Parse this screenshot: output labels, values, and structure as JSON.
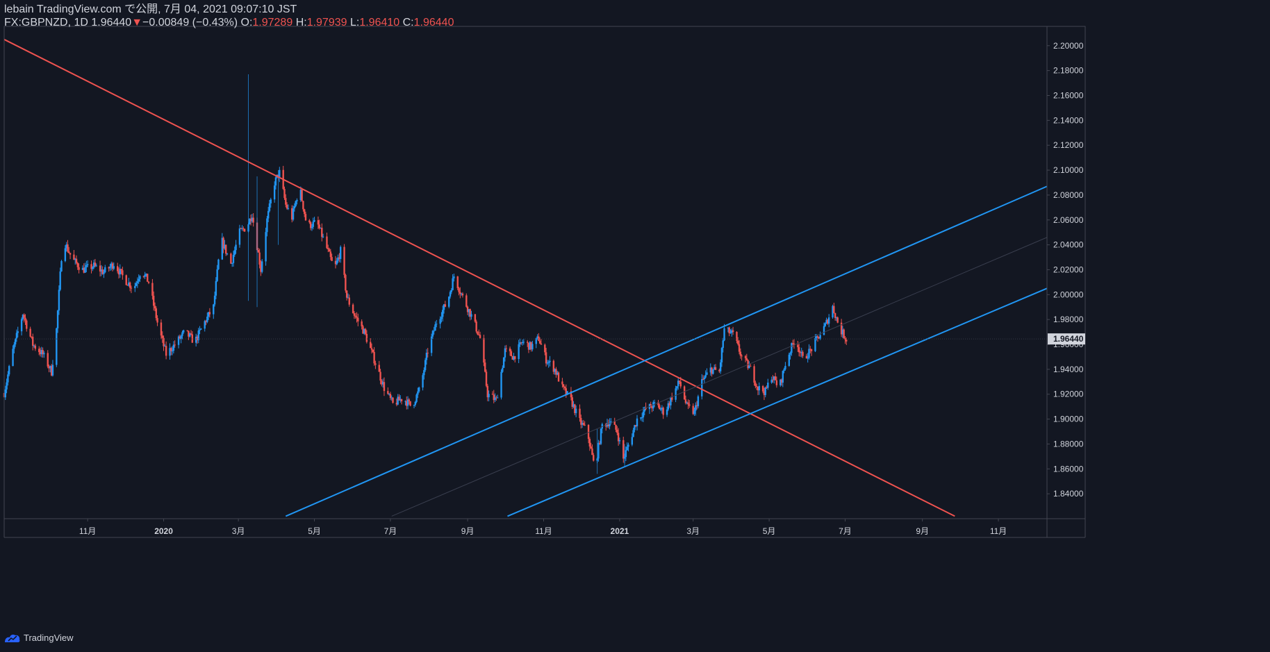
{
  "header": {
    "publish_line": "lebain TradingView.com で公開, 7月 04, 2021 09:07:10 JST",
    "symbol": "FX:GBPNZD, 1D",
    "last": "1.96440",
    "arrow": "▼",
    "change": "−0.00849 (−0.43%)",
    "o_label": "O:",
    "o_value": "1.97289",
    "h_label": "H:",
    "h_value": "1.97939",
    "l_label": "L:",
    "l_value": "1.96410",
    "c_label": "C:",
    "c_value": "1.96440"
  },
  "footer": {
    "brand": "TradingView"
  },
  "colors": {
    "background": "#131722",
    "up": "#2196f3",
    "down": "#ef5350",
    "price_badge_bg": "#d1d4dc",
    "price_badge_text": "#131722"
  },
  "chart_data": {
    "type": "candlestick",
    "x_ticks": [
      {
        "label": "11月",
        "date": "2019-11-01"
      },
      {
        "label": "2020",
        "date": "2020-01-01"
      },
      {
        "label": "3月",
        "date": "2020-03-01"
      },
      {
        "label": "5月",
        "date": "2020-05-01"
      },
      {
        "label": "7月",
        "date": "2020-07-01"
      },
      {
        "label": "9月",
        "date": "2020-09-01"
      },
      {
        "label": "11月",
        "date": "2020-11-01"
      },
      {
        "label": "2021",
        "date": "2021-01-01"
      },
      {
        "label": "3月",
        "date": "2021-03-01"
      },
      {
        "label": "5月",
        "date": "2021-05-01"
      },
      {
        "label": "7月",
        "date": "2021-07-01"
      },
      {
        "label": "9月",
        "date": "2021-09-01"
      },
      {
        "label": "11月",
        "date": "2021-11-01"
      }
    ],
    "y_ticks": [
      "2.20000",
      "2.18000",
      "2.16000",
      "2.14000",
      "2.12000",
      "2.10000",
      "2.08000",
      "2.06000",
      "2.04000",
      "2.02000",
      "2.00000",
      "1.98000",
      "1.96000",
      "1.94000",
      "1.92000",
      "1.90000",
      "1.88000",
      "1.86000",
      "1.84000"
    ],
    "ylim": [
      1.82,
      2.2155
    ],
    "xlim": [
      "2019-08-26",
      "2021-12-10"
    ],
    "last_price": "1.96440",
    "price_path": [
      [
        "2019-08-26",
        1.921
      ],
      [
        "2019-09-02",
        1.955
      ],
      [
        "2019-09-10",
        1.985
      ],
      [
        "2019-09-18",
        1.96
      ],
      [
        "2019-09-26",
        1.952
      ],
      [
        "2019-10-03",
        1.938
      ],
      [
        "2019-10-07",
        1.972
      ],
      [
        "2019-10-12",
        2.045
      ],
      [
        "2019-10-20",
        2.028
      ],
      [
        "2019-10-28",
        2.02
      ],
      [
        "2019-11-06",
        2.023
      ],
      [
        "2019-11-14",
        2.018
      ],
      [
        "2019-11-22",
        2.025
      ],
      [
        "2019-12-01",
        2.012
      ],
      [
        "2019-12-08",
        2.005
      ],
      [
        "2019-12-14",
        2.02
      ],
      [
        "2019-12-20",
        2.01
      ],
      [
        "2019-12-28",
        1.973
      ],
      [
        "2020-01-03",
        1.952
      ],
      [
        "2020-01-10",
        1.96
      ],
      [
        "2020-01-18",
        1.97
      ],
      [
        "2020-01-26",
        1.962
      ],
      [
        "2020-02-03",
        1.978
      ],
      [
        "2020-02-10",
        1.99
      ],
      [
        "2020-02-16",
        2.045
      ],
      [
        "2020-02-24",
        2.025
      ],
      [
        "2020-03-02",
        2.05
      ],
      [
        "2020-03-08",
        2.055
      ],
      [
        "2020-03-12",
        2.065
      ],
      [
        "2020-03-19",
        2.02
      ],
      [
        "2020-03-24",
        2.06
      ],
      [
        "2020-03-30",
        2.09
      ],
      [
        "2020-04-03",
        2.098
      ],
      [
        "2020-04-08",
        2.072
      ],
      [
        "2020-04-13",
        2.062
      ],
      [
        "2020-04-19",
        2.087
      ],
      [
        "2020-04-25",
        2.055
      ],
      [
        "2020-05-03",
        2.058
      ],
      [
        "2020-05-10",
        2.04
      ],
      [
        "2020-05-17",
        2.02
      ],
      [
        "2020-05-22",
        2.035
      ],
      [
        "2020-05-27",
        1.998
      ],
      [
        "2020-06-02",
        1.984
      ],
      [
        "2020-06-10",
        1.97
      ],
      [
        "2020-06-18",
        1.948
      ],
      [
        "2020-06-26",
        1.925
      ],
      [
        "2020-07-03",
        1.912
      ],
      [
        "2020-07-11",
        1.917
      ],
      [
        "2020-07-18",
        1.91
      ],
      [
        "2020-07-25",
        1.925
      ],
      [
        "2020-07-31",
        1.955
      ],
      [
        "2020-08-07",
        1.978
      ],
      [
        "2020-08-16",
        1.995
      ],
      [
        "2020-08-21",
        2.015
      ],
      [
        "2020-08-28",
        1.998
      ],
      [
        "2020-09-04",
        1.983
      ],
      [
        "2020-09-11",
        1.965
      ],
      [
        "2020-09-17",
        1.92
      ],
      [
        "2020-09-24",
        1.915
      ],
      [
        "2020-10-01",
        1.955
      ],
      [
        "2020-10-08",
        1.95
      ],
      [
        "2020-10-15",
        1.962
      ],
      [
        "2020-10-22",
        1.958
      ],
      [
        "2020-10-28",
        1.965
      ],
      [
        "2020-11-03",
        1.948
      ],
      [
        "2020-11-10",
        1.94
      ],
      [
        "2020-11-16",
        1.925
      ],
      [
        "2020-11-23",
        1.915
      ],
      [
        "2020-11-30",
        1.898
      ],
      [
        "2020-12-06",
        1.89
      ],
      [
        "2020-12-12",
        1.86
      ],
      [
        "2020-12-18",
        1.895
      ],
      [
        "2020-12-24",
        1.898
      ],
      [
        "2020-12-30",
        1.89
      ],
      [
        "2021-01-04",
        1.868
      ],
      [
        "2021-01-09",
        1.882
      ],
      [
        "2021-01-15",
        1.9
      ],
      [
        "2021-01-22",
        1.908
      ],
      [
        "2021-01-30",
        1.912
      ],
      [
        "2021-02-06",
        1.905
      ],
      [
        "2021-02-12",
        1.918
      ],
      [
        "2021-02-18",
        1.93
      ],
      [
        "2021-02-24",
        1.91
      ],
      [
        "2021-03-02",
        1.905
      ],
      [
        "2021-03-08",
        1.93
      ],
      [
        "2021-03-15",
        1.94
      ],
      [
        "2021-03-22",
        1.938
      ],
      [
        "2021-03-26",
        1.972
      ],
      [
        "2021-04-02",
        1.968
      ],
      [
        "2021-04-09",
        1.95
      ],
      [
        "2021-04-16",
        1.94
      ],
      [
        "2021-04-22",
        1.925
      ],
      [
        "2021-04-28",
        1.922
      ],
      [
        "2021-05-03",
        1.935
      ],
      [
        "2021-05-09",
        1.925
      ],
      [
        "2021-05-15",
        1.948
      ],
      [
        "2021-05-22",
        1.965
      ],
      [
        "2021-05-28",
        1.948
      ],
      [
        "2021-06-03",
        1.955
      ],
      [
        "2021-06-09",
        1.965
      ],
      [
        "2021-06-15",
        1.975
      ],
      [
        "2021-06-21",
        1.99
      ],
      [
        "2021-06-27",
        1.972
      ],
      [
        "2021-07-02",
        1.9644
      ]
    ],
    "spikes": [
      [
        "2020-03-09",
        1.995,
        2.177
      ],
      [
        "2020-03-16",
        1.99,
        2.095
      ],
      [
        "2020-04-02",
        2.04,
        2.1
      ],
      [
        "2020-12-14",
        1.856,
        1.892
      ],
      [
        "2021-01-05",
        1.862,
        1.88
      ]
    ],
    "trendlines": [
      {
        "color": "#ef5350",
        "from": [
          "2019-08-26",
          2.205
        ],
        "to": [
          "2021-09-27",
          1.822
        ]
      },
      {
        "color": "#2196f3",
        "from": [
          "2020-04-08",
          1.822
        ],
        "to": [
          "2021-12-10",
          2.087
        ]
      },
      {
        "color": "#2196f3",
        "from": [
          "2020-10-03",
          1.822
        ],
        "to": [
          "2021-12-10",
          2.005
        ]
      },
      {
        "color": "#3a3f4f",
        "from": [
          "2020-07-02",
          1.822
        ],
        "to": [
          "2021-12-10",
          2.046
        ]
      }
    ]
  }
}
